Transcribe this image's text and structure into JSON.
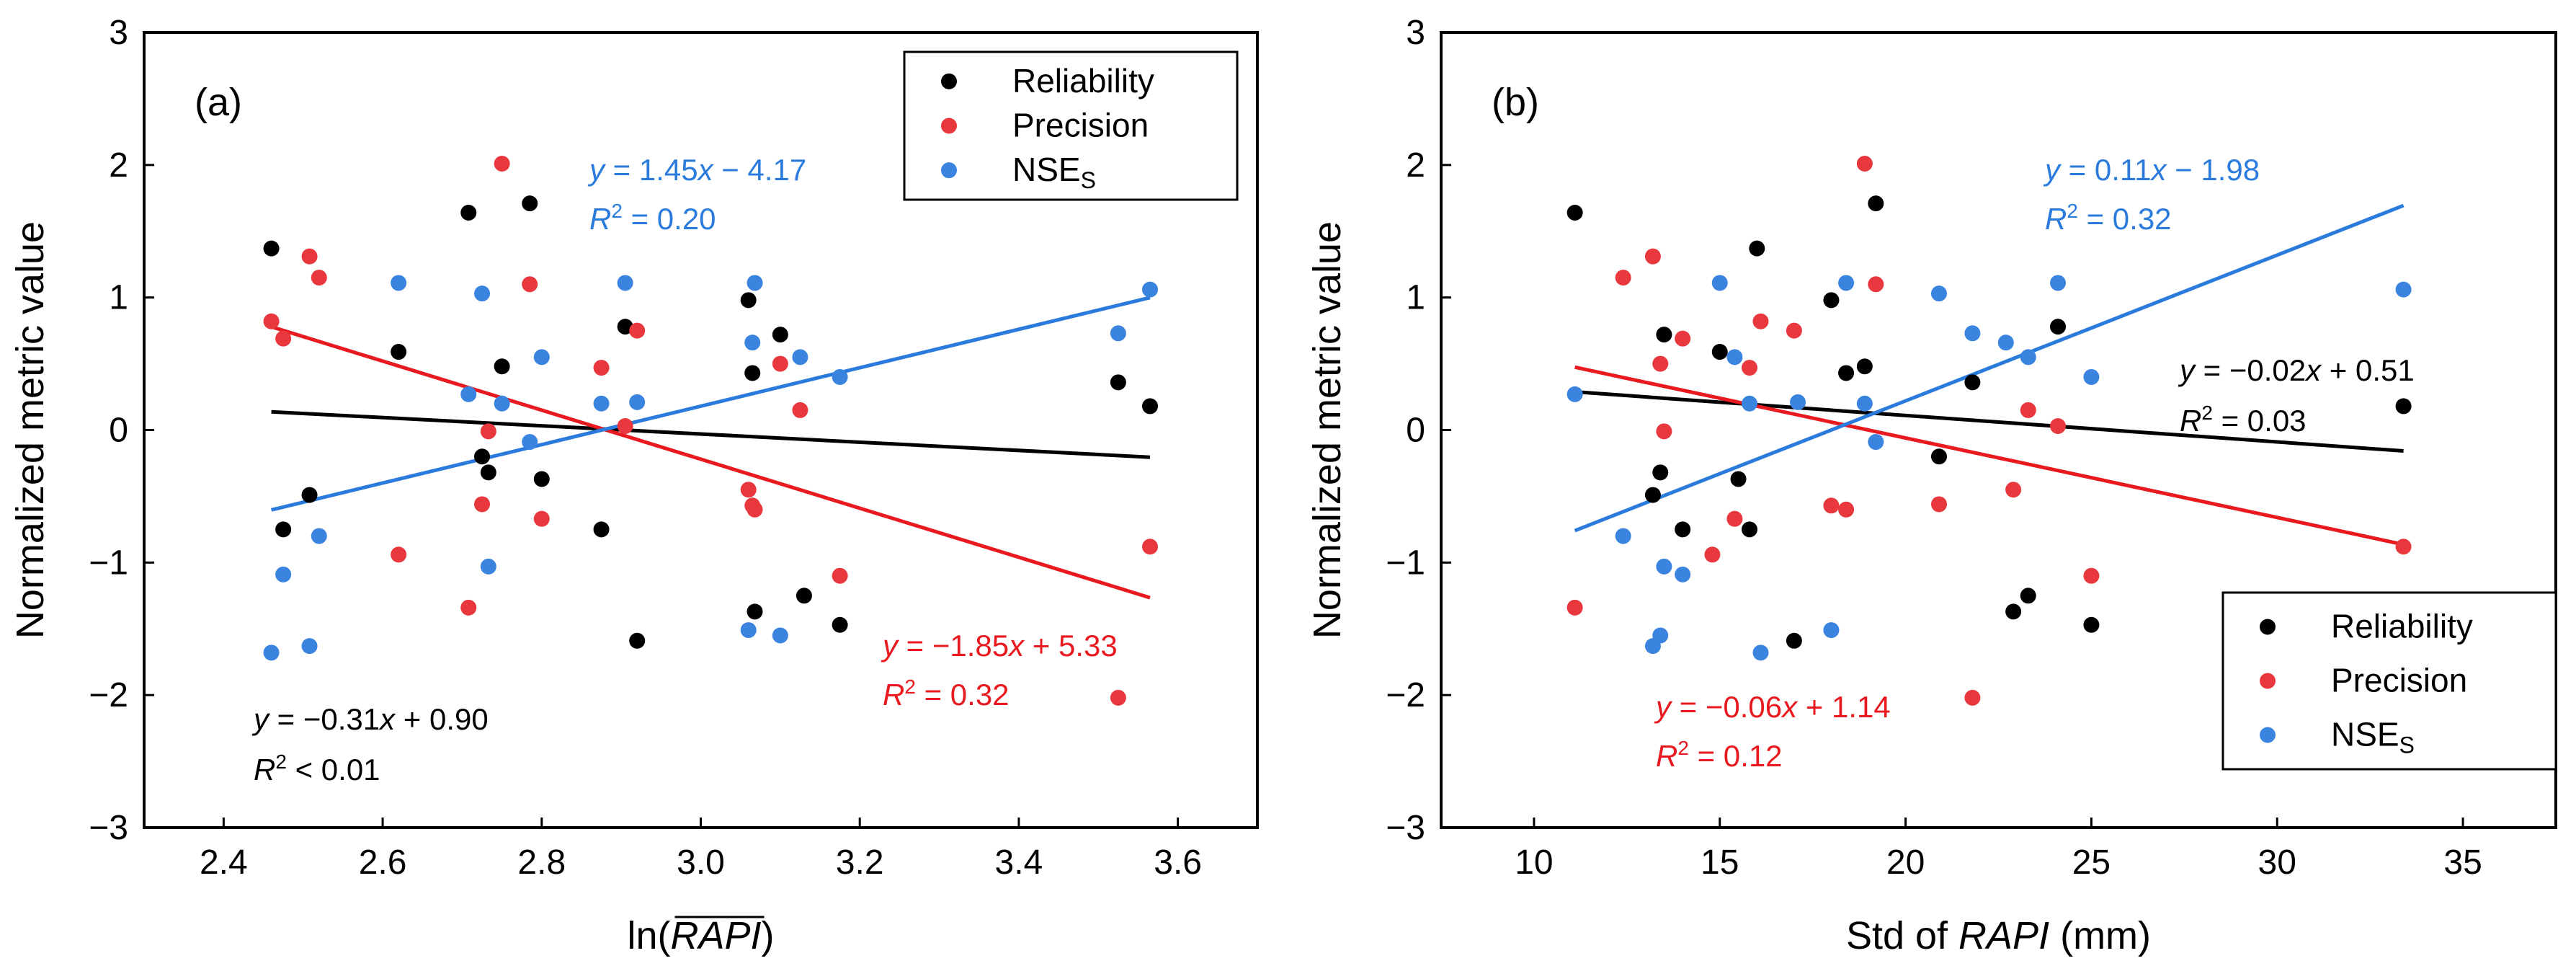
{
  "colors": {
    "reliability": "#000000",
    "precision": "#e8383d",
    "nse": "#3a84e0",
    "precision_line": "#e8191f",
    "nse_line": "#2b7bdc"
  },
  "chart_data": [
    {
      "type": "scatter",
      "panel_label": "(a)",
      "ylabel": "Normalized metric value",
      "xlabel": "ln(RAPI)",
      "xlabel_prefix": "ln(",
      "xlabel_var": "RAPI",
      "xlabel_suffix": ")",
      "xlim": [
        2.3,
        3.7
      ],
      "ylim": [
        -3,
        3
      ],
      "xticks": [
        "2.4",
        "2.6",
        "2.8",
        "3.0",
        "3.2",
        "3.4",
        "3.6"
      ],
      "yticks": [
        "−3",
        "−2",
        "−1",
        "0",
        "1",
        "2",
        "3"
      ],
      "legend": {
        "position": "top-right",
        "entries": [
          "Reliability",
          "Precision",
          "NSES"
        ]
      },
      "series": [
        {
          "name": "Reliability",
          "x": [
            2.46,
            2.475,
            2.508,
            2.62,
            2.708,
            2.725,
            2.733,
            2.75,
            2.785,
            2.8,
            2.875,
            2.905,
            2.92,
            3.06,
            3.065,
            3.068,
            3.1,
            3.13,
            3.175,
            3.525,
            3.565
          ],
          "y": [
            1.37,
            -0.75,
            -0.49,
            0.59,
            1.64,
            -0.2,
            -0.32,
            0.48,
            1.71,
            -0.37,
            -0.75,
            0.78,
            -1.59,
            0.98,
            0.43,
            -1.37,
            0.72,
            -1.25,
            -1.47,
            0.36,
            0.18
          ]
        },
        {
          "name": "Precision",
          "x": [
            2.46,
            2.475,
            2.508,
            2.52,
            2.62,
            2.708,
            2.725,
            2.733,
            2.75,
            2.785,
            2.8,
            2.875,
            2.905,
            2.92,
            3.06,
            3.065,
            3.068,
            3.1,
            3.125,
            3.175,
            3.525,
            3.565
          ],
          "y": [
            0.82,
            0.69,
            1.31,
            1.15,
            -0.94,
            -1.34,
            -0.56,
            -0.01,
            2.01,
            1.1,
            -0.67,
            0.47,
            0.03,
            0.75,
            -0.45,
            -0.57,
            -0.6,
            0.5,
            0.15,
            -1.1,
            -2.02,
            -0.88
          ]
        },
        {
          "name": "NSES",
          "x": [
            2.46,
            2.475,
            2.508,
            2.52,
            2.62,
            2.708,
            2.725,
            2.733,
            2.75,
            2.785,
            2.8,
            2.875,
            2.905,
            2.92,
            3.06,
            3.065,
            3.068,
            3.1,
            3.125,
            3.175,
            3.525,
            3.565
          ],
          "y": [
            -1.68,
            -1.09,
            -1.63,
            -0.8,
            1.11,
            0.27,
            1.03,
            -1.03,
            0.2,
            -0.09,
            0.55,
            0.2,
            1.11,
            0.21,
            -1.51,
            0.66,
            1.11,
            -1.55,
            0.55,
            0.4,
            0.73,
            1.06
          ]
        }
      ],
      "fits": [
        {
          "series": "Reliability",
          "slope": -0.31,
          "intercept": 0.9,
          "x_range": [
            2.46,
            3.565
          ],
          "equation": "y = −0.31x + 0.90",
          "eq_rhs": " = −0.31",
          "eq_tail": " + 0.90",
          "r2": "R2 < 0.01",
          "r2_rhs": " < 0.01"
        },
        {
          "series": "Precision",
          "slope": -1.85,
          "intercept": 5.33,
          "x_range": [
            2.46,
            3.565
          ],
          "equation": "y = −1.85x + 5.33",
          "eq_rhs": " = −1.85",
          "eq_tail": " + 5.33",
          "r2": "R2 = 0.32",
          "r2_rhs": " = 0.32"
        },
        {
          "series": "NSES",
          "slope": 1.45,
          "intercept": -4.17,
          "x_range": [
            2.46,
            3.565
          ],
          "equation": "y = 1.45x − 4.17",
          "eq_rhs": " = 1.45",
          "eq_tail": " − 4.17",
          "r2": "R2 = 0.20",
          "r2_rhs": " = 0.20"
        }
      ]
    },
    {
      "type": "scatter",
      "panel_label": "(b)",
      "ylabel": "Normalized metric value",
      "xlabel": "Std of RAPI (mm)",
      "xlabel_prefix": "Std of ",
      "xlabel_var": "RAPI",
      "xlabel_suffix": " (mm)",
      "xlim": [
        7.5,
        37.5
      ],
      "ylim": [
        -3,
        3
      ],
      "xticks": [
        "10",
        "15",
        "20",
        "25",
        "30",
        "35"
      ],
      "yticks": [
        "−3",
        "−2",
        "−1",
        "0",
        "1",
        "2",
        "3"
      ],
      "legend": {
        "position": "bottom-right",
        "entries": [
          "Reliability",
          "Precision",
          "NSES"
        ]
      },
      "series": [
        {
          "name": "Reliability",
          "x": [
            11.1,
            13.2,
            13.4,
            13.5,
            14.0,
            15.0,
            15.5,
            15.8,
            16.0,
            17.0,
            18.0,
            18.4,
            18.9,
            19.2,
            20.9,
            21.8,
            22.9,
            23.3,
            24.1,
            25.0,
            33.4
          ],
          "y": [
            1.64,
            -0.49,
            -0.32,
            0.72,
            -0.75,
            0.59,
            -0.37,
            -0.75,
            1.37,
            -1.59,
            0.98,
            0.43,
            0.48,
            1.71,
            -0.2,
            0.36,
            -1.37,
            -1.25,
            0.78,
            -1.47,
            0.18
          ]
        },
        {
          "name": "Precision",
          "x": [
            11.1,
            12.4,
            13.2,
            13.4,
            13.5,
            14.0,
            14.8,
            15.4,
            15.8,
            16.1,
            17.0,
            18.0,
            18.4,
            18.9,
            19.2,
            20.9,
            21.8,
            22.9,
            23.3,
            24.1,
            25.0,
            33.4
          ],
          "y": [
            -1.34,
            1.15,
            1.31,
            0.5,
            -0.01,
            0.69,
            -0.94,
            -0.67,
            0.47,
            0.82,
            0.75,
            -0.57,
            -0.6,
            2.01,
            1.1,
            -0.56,
            -2.02,
            -0.45,
            0.15,
            0.03,
            -1.1,
            -0.88
          ]
        },
        {
          "name": "NSES",
          "x": [
            11.1,
            12.4,
            13.2,
            13.4,
            13.5,
            14.0,
            15.0,
            15.4,
            15.8,
            16.1,
            17.1,
            18.0,
            18.4,
            18.9,
            19.2,
            20.9,
            21.8,
            22.7,
            23.3,
            24.1,
            25.0,
            33.4
          ],
          "y": [
            0.27,
            -0.8,
            -1.63,
            -1.55,
            -1.03,
            -1.09,
            1.11,
            0.55,
            0.2,
            -1.68,
            0.21,
            -1.51,
            1.11,
            0.2,
            -0.09,
            1.03,
            0.73,
            0.66,
            0.55,
            1.11,
            0.4,
            1.06
          ]
        }
      ],
      "fits": [
        {
          "series": "Reliability",
          "slope": -0.02,
          "intercept": 0.51,
          "x_range": [
            11.1,
            33.4
          ],
          "equation": "y = −0.02x + 0.51",
          "eq_rhs": " = −0.02",
          "eq_tail": " + 0.51",
          "r2": "R2 = 0.03",
          "r2_rhs": " = 0.03"
        },
        {
          "series": "Precision",
          "slope": -0.06,
          "intercept": 1.14,
          "x_range": [
            11.1,
            33.4
          ],
          "equation": "y = −0.06x + 1.14",
          "eq_rhs": " = −0.06",
          "eq_tail": " + 1.14",
          "r2": "R2 = 0.12",
          "r2_rhs": " = 0.12"
        },
        {
          "series": "NSES",
          "slope": 0.11,
          "intercept": -1.98,
          "x_range": [
            11.1,
            33.4
          ],
          "equation": "y = 0.11x − 1.98",
          "eq_rhs": " = 0.11",
          "eq_tail": " − 1.98",
          "r2": "R2 = 0.32",
          "r2_rhs": " = 0.32"
        }
      ]
    }
  ]
}
